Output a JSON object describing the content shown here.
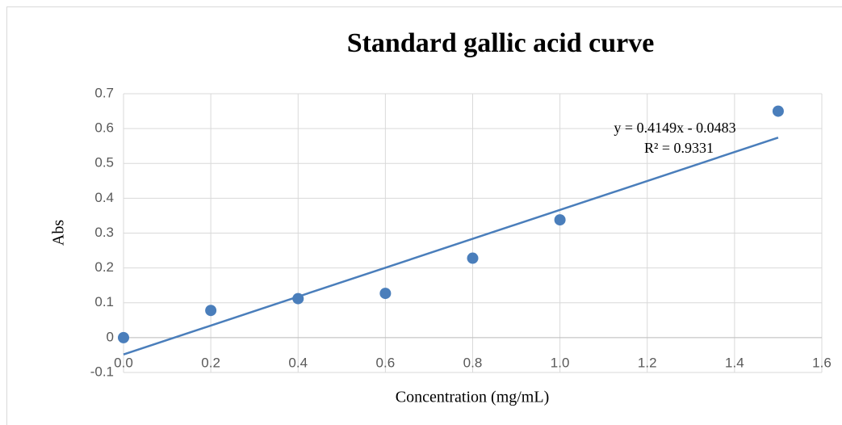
{
  "chart_data": {
    "type": "scatter",
    "title": "Standard gallic acid curve",
    "xlabel": "Concentration (mg/mL)",
    "ylabel": "Abs",
    "x": [
      0,
      0.2,
      0.4,
      0.6,
      0.8,
      1.0,
      1.5
    ],
    "values": [
      0,
      0.078,
      0.112,
      0.127,
      0.228,
      0.338,
      0.65
    ],
    "color": "#4a7ebb",
    "xlim": [
      0,
      1.6
    ],
    "xticks": [
      {
        "value": 0,
        "label": "0.0"
      },
      0.2,
      0.4,
      0.6,
      0.8,
      {
        "value": 1,
        "label": "1.0"
      },
      1.2,
      1.4,
      1.6
    ],
    "ylim": [
      -0.1,
      0.7
    ],
    "yticks": [
      -0.1,
      0,
      0.1,
      0.2,
      0.3,
      0.4,
      0.5,
      0.6,
      0.7
    ],
    "grid": true,
    "trendline": {
      "slope": 0.4149,
      "intercept": -0.0483,
      "equation": "y = 0.4149x - 0.0483",
      "r2": "R² = 0.9331"
    }
  }
}
